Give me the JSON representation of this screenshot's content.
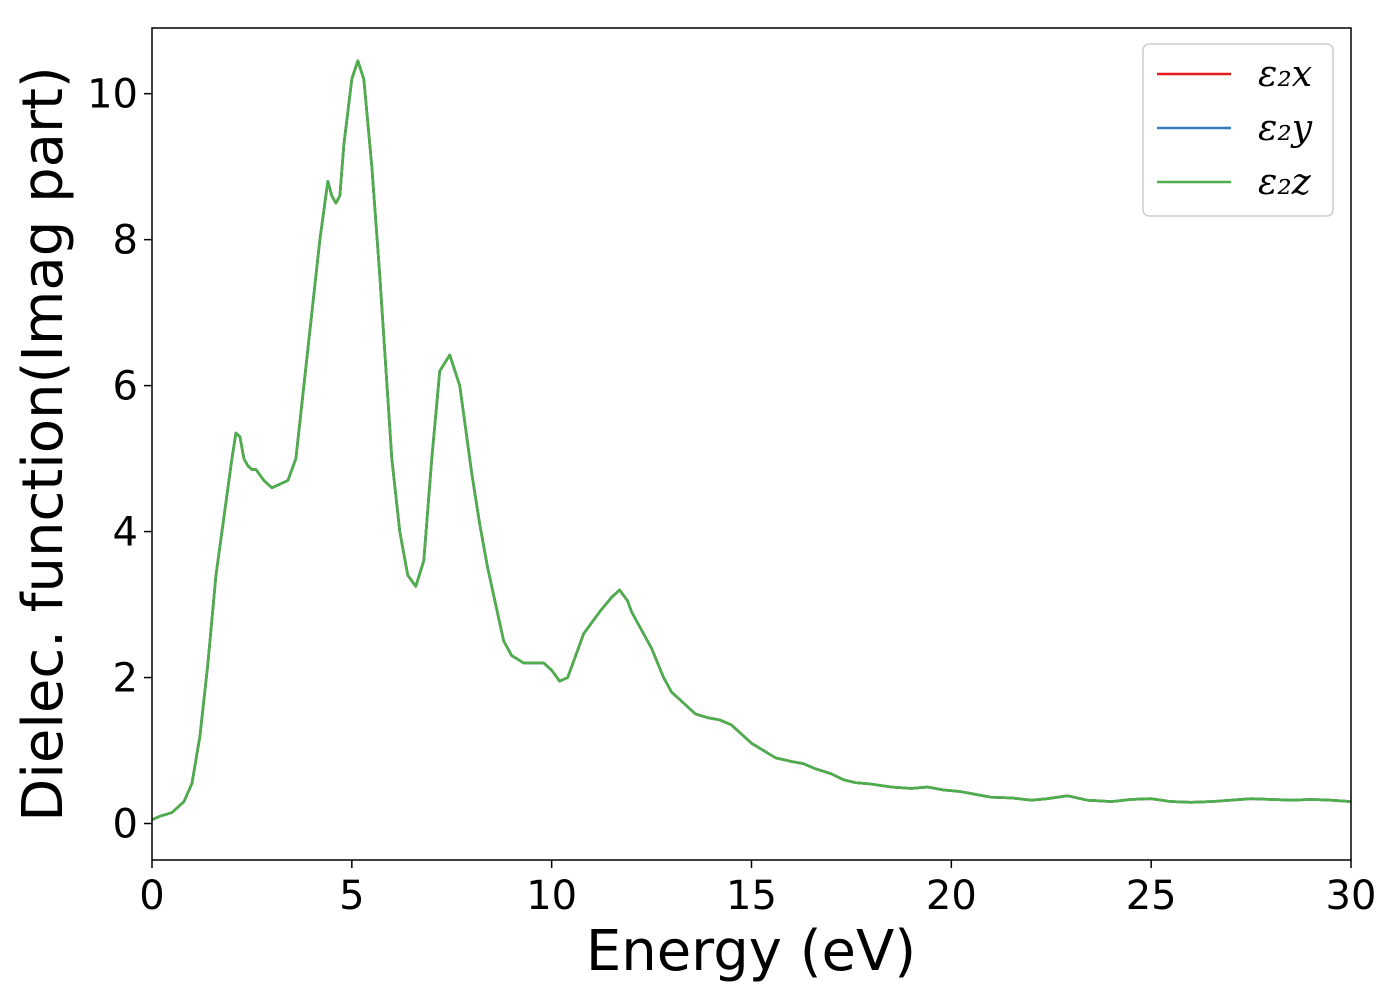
{
  "chart_data": {
    "type": "line",
    "title": "",
    "xlabel": "Energy (eV)",
    "ylabel": "Dielec. function(Imag part)",
    "xlim": [
      0,
      30
    ],
    "ylim": [
      -0.5,
      10.9
    ],
    "xticks": [
      0,
      5,
      10,
      15,
      20,
      25,
      30
    ],
    "yticks": [
      0,
      2,
      4,
      6,
      8,
      10
    ],
    "grid": false,
    "legend": "top-right",
    "series": [
      {
        "name": "ε₂x",
        "color": "#e41a1c",
        "x": [
          0,
          0.2,
          0.5,
          0.8,
          1.0,
          1.2,
          1.4,
          1.6,
          1.8,
          2.0,
          2.1,
          2.2,
          2.3,
          2.4,
          2.5,
          2.6,
          2.8,
          3.0,
          3.2,
          3.4,
          3.6,
          3.8,
          4.0,
          4.2,
          4.4,
          4.5,
          4.6,
          4.7,
          4.8,
          5.0,
          5.15,
          5.3,
          5.5,
          5.7,
          6.0,
          6.2,
          6.4,
          6.6,
          6.8,
          7.0,
          7.2,
          7.45,
          7.7,
          8.0,
          8.2,
          8.4,
          8.6,
          8.8,
          9.0,
          9.3,
          9.6,
          9.8,
          10.0,
          10.2,
          10.4,
          10.6,
          10.8,
          11.0,
          11.2,
          11.5,
          11.7,
          11.9,
          12.0,
          12.2,
          12.5,
          12.8,
          13.0,
          13.3,
          13.6,
          13.9,
          14.2,
          14.5,
          14.8,
          15.0,
          15.3,
          15.6,
          16.0,
          16.3,
          16.6,
          17.0,
          17.3,
          17.6,
          18.0,
          18.5,
          19.0,
          19.4,
          19.8,
          20.2,
          20.6,
          21.0,
          21.5,
          22.0,
          22.4,
          22.9,
          23.4,
          24.0,
          24.5,
          25.0,
          25.5,
          26.0,
          26.5,
          27.0,
          27.5,
          28.0,
          28.5,
          29.0,
          29.5,
          30.0
        ],
        "values": [
          0.05,
          0.1,
          0.15,
          0.3,
          0.55,
          1.2,
          2.2,
          3.4,
          4.2,
          5.0,
          5.35,
          5.3,
          5.0,
          4.9,
          4.85,
          4.85,
          4.7,
          4.6,
          4.65,
          4.7,
          5.0,
          6.0,
          7.0,
          8.0,
          8.8,
          8.6,
          8.5,
          8.6,
          9.3,
          10.2,
          10.45,
          10.2,
          9.0,
          7.5,
          5.0,
          4.0,
          3.4,
          3.25,
          3.6,
          5.0,
          6.2,
          6.42,
          6.0,
          4.8,
          4.1,
          3.5,
          3.0,
          2.5,
          2.3,
          2.2,
          2.2,
          2.2,
          2.1,
          1.95,
          2.0,
          2.3,
          2.6,
          2.75,
          2.9,
          3.1,
          3.2,
          3.05,
          2.9,
          2.7,
          2.4,
          2.0,
          1.8,
          1.65,
          1.5,
          1.45,
          1.42,
          1.35,
          1.2,
          1.1,
          1.0,
          0.9,
          0.85,
          0.82,
          0.75,
          0.68,
          0.6,
          0.56,
          0.54,
          0.5,
          0.48,
          0.5,
          0.46,
          0.44,
          0.4,
          0.36,
          0.35,
          0.32,
          0.34,
          0.38,
          0.32,
          0.3,
          0.33,
          0.34,
          0.3,
          0.29,
          0.3,
          0.32,
          0.34,
          0.33,
          0.32,
          0.33,
          0.32,
          0.3
        ]
      },
      {
        "name": "ε₂y",
        "color": "#377eb8",
        "x": [
          0,
          0.2,
          0.5,
          0.8,
          1.0,
          1.2,
          1.4,
          1.6,
          1.8,
          2.0,
          2.1,
          2.2,
          2.3,
          2.4,
          2.5,
          2.6,
          2.8,
          3.0,
          3.2,
          3.4,
          3.6,
          3.8,
          4.0,
          4.2,
          4.4,
          4.5,
          4.6,
          4.7,
          4.8,
          5.0,
          5.15,
          5.3,
          5.5,
          5.7,
          6.0,
          6.2,
          6.4,
          6.6,
          6.8,
          7.0,
          7.2,
          7.45,
          7.7,
          8.0,
          8.2,
          8.4,
          8.6,
          8.8,
          9.0,
          9.3,
          9.6,
          9.8,
          10.0,
          10.2,
          10.4,
          10.6,
          10.8,
          11.0,
          11.2,
          11.5,
          11.7,
          11.9,
          12.0,
          12.2,
          12.5,
          12.8,
          13.0,
          13.3,
          13.6,
          13.9,
          14.2,
          14.5,
          14.8,
          15.0,
          15.3,
          15.6,
          16.0,
          16.3,
          16.6,
          17.0,
          17.3,
          17.6,
          18.0,
          18.5,
          19.0,
          19.4,
          19.8,
          20.2,
          20.6,
          21.0,
          21.5,
          22.0,
          22.4,
          22.9,
          23.4,
          24.0,
          24.5,
          25.0,
          25.5,
          26.0,
          26.5,
          27.0,
          27.5,
          28.0,
          28.5,
          29.0,
          29.5,
          30.0
        ],
        "values": [
          0.05,
          0.1,
          0.15,
          0.3,
          0.55,
          1.2,
          2.2,
          3.4,
          4.2,
          5.0,
          5.35,
          5.3,
          5.0,
          4.9,
          4.85,
          4.85,
          4.7,
          4.6,
          4.65,
          4.7,
          5.0,
          6.0,
          7.0,
          8.0,
          8.8,
          8.6,
          8.5,
          8.6,
          9.3,
          10.2,
          10.45,
          10.2,
          9.0,
          7.5,
          5.0,
          4.0,
          3.4,
          3.25,
          3.6,
          5.0,
          6.2,
          6.42,
          6.0,
          4.8,
          4.1,
          3.5,
          3.0,
          2.5,
          2.3,
          2.2,
          2.2,
          2.2,
          2.1,
          1.95,
          2.0,
          2.3,
          2.6,
          2.75,
          2.9,
          3.1,
          3.2,
          3.05,
          2.9,
          2.7,
          2.4,
          2.0,
          1.8,
          1.65,
          1.5,
          1.45,
          1.42,
          1.35,
          1.2,
          1.1,
          1.0,
          0.9,
          0.85,
          0.82,
          0.75,
          0.68,
          0.6,
          0.56,
          0.54,
          0.5,
          0.48,
          0.5,
          0.46,
          0.44,
          0.4,
          0.36,
          0.35,
          0.32,
          0.34,
          0.38,
          0.32,
          0.3,
          0.33,
          0.34,
          0.3,
          0.29,
          0.3,
          0.32,
          0.34,
          0.33,
          0.32,
          0.33,
          0.32,
          0.3
        ]
      },
      {
        "name": "ε₂z",
        "color": "#4daf4a",
        "x": [
          0,
          0.2,
          0.5,
          0.8,
          1.0,
          1.2,
          1.4,
          1.6,
          1.8,
          2.0,
          2.1,
          2.2,
          2.3,
          2.4,
          2.5,
          2.6,
          2.8,
          3.0,
          3.2,
          3.4,
          3.6,
          3.8,
          4.0,
          4.2,
          4.4,
          4.5,
          4.6,
          4.7,
          4.8,
          5.0,
          5.15,
          5.3,
          5.5,
          5.7,
          6.0,
          6.2,
          6.4,
          6.6,
          6.8,
          7.0,
          7.2,
          7.45,
          7.7,
          8.0,
          8.2,
          8.4,
          8.6,
          8.8,
          9.0,
          9.3,
          9.6,
          9.8,
          10.0,
          10.2,
          10.4,
          10.6,
          10.8,
          11.0,
          11.2,
          11.5,
          11.7,
          11.9,
          12.0,
          12.2,
          12.5,
          12.8,
          13.0,
          13.3,
          13.6,
          13.9,
          14.2,
          14.5,
          14.8,
          15.0,
          15.3,
          15.6,
          16.0,
          16.3,
          16.6,
          17.0,
          17.3,
          17.6,
          18.0,
          18.5,
          19.0,
          19.4,
          19.8,
          20.2,
          20.6,
          21.0,
          21.5,
          22.0,
          22.4,
          22.9,
          23.4,
          24.0,
          24.5,
          25.0,
          25.5,
          26.0,
          26.5,
          27.0,
          27.5,
          28.0,
          28.5,
          29.0,
          29.5,
          30.0
        ],
        "values": [
          0.05,
          0.1,
          0.15,
          0.3,
          0.55,
          1.2,
          2.2,
          3.4,
          4.2,
          5.0,
          5.35,
          5.3,
          5.0,
          4.9,
          4.85,
          4.85,
          4.7,
          4.6,
          4.65,
          4.7,
          5.0,
          6.0,
          7.0,
          8.0,
          8.8,
          8.6,
          8.5,
          8.6,
          9.3,
          10.2,
          10.45,
          10.2,
          9.0,
          7.5,
          5.0,
          4.0,
          3.4,
          3.25,
          3.6,
          5.0,
          6.2,
          6.42,
          6.0,
          4.8,
          4.1,
          3.5,
          3.0,
          2.5,
          2.3,
          2.2,
          2.2,
          2.2,
          2.1,
          1.95,
          2.0,
          2.3,
          2.6,
          2.75,
          2.9,
          3.1,
          3.2,
          3.05,
          2.9,
          2.7,
          2.4,
          2.0,
          1.8,
          1.65,
          1.5,
          1.45,
          1.42,
          1.35,
          1.2,
          1.1,
          1.0,
          0.9,
          0.85,
          0.82,
          0.75,
          0.68,
          0.6,
          0.56,
          0.54,
          0.5,
          0.48,
          0.5,
          0.46,
          0.44,
          0.4,
          0.36,
          0.35,
          0.32,
          0.34,
          0.38,
          0.32,
          0.3,
          0.33,
          0.34,
          0.3,
          0.29,
          0.3,
          0.32,
          0.34,
          0.33,
          0.32,
          0.33,
          0.32,
          0.3
        ]
      }
    ]
  }
}
